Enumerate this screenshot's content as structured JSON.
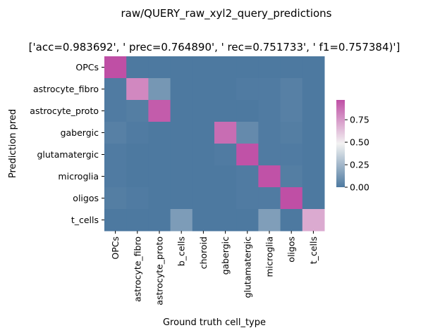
{
  "chart_data": {
    "type": "heatmap",
    "title": "raw/QUERY_raw_xyl2_query_predictions",
    "subtitle": "['acc=0.983692', '  prec=0.764890', ' rec=0.751733', ' f1=0.757384)']",
    "xlabel": "Ground truth cell_type",
    "ylabel": "Prediction pred",
    "x_categories": [
      "OPCs",
      "astrocyte_fibro",
      "astrocyte_proto",
      "b_cells",
      "choroid",
      "gabergic",
      "glutamatergic",
      "microglia",
      "oligos",
      "t_cells"
    ],
    "y_categories": [
      "OPCs",
      "astrocyte_fibro",
      "astrocyte_proto",
      "gabergic",
      "glutamatergic",
      "microglia",
      "oligos",
      "t_cells"
    ],
    "values": [
      [
        0.97,
        0.0,
        0.0,
        0.0,
        0.0,
        0.0,
        0.0,
        0.0,
        0.0,
        0.0
      ],
      [
        0.01,
        0.8,
        0.12,
        0.0,
        0.0,
        0.0,
        0.01,
        0.01,
        0.03,
        0.0
      ],
      [
        0.01,
        0.02,
        0.93,
        0.0,
        0.0,
        0.0,
        0.0,
        0.01,
        0.03,
        0.0
      ],
      [
        0.03,
        0.01,
        0.0,
        0.0,
        0.0,
        0.88,
        0.07,
        0.01,
        0.02,
        0.0
      ],
      [
        0.01,
        0.0,
        0.0,
        0.0,
        0.0,
        0.01,
        0.96,
        0.01,
        0.01,
        0.0
      ],
      [
        0.01,
        0.0,
        0.0,
        0.0,
        0.0,
        0.0,
        0.01,
        0.96,
        0.02,
        0.0
      ],
      [
        0.02,
        0.01,
        0.0,
        0.0,
        0.0,
        0.0,
        0.01,
        0.01,
        0.97,
        0.0
      ],
      [
        0.0,
        0.0,
        0.0,
        0.14,
        0.0,
        0.0,
        0.0,
        0.15,
        0.0,
        0.7
      ]
    ],
    "colorbar": {
      "ticks": [
        0.0,
        0.25,
        0.5,
        0.75
      ],
      "tick_labels": [
        "0.00",
        "0.25",
        "0.50",
        "0.75"
      ],
      "vmin": 0.0,
      "vmax": 0.97
    },
    "colormap": {
      "low": "#4d79a0",
      "mid": "#f2f2f2",
      "high": "#bf4fa5"
    }
  }
}
